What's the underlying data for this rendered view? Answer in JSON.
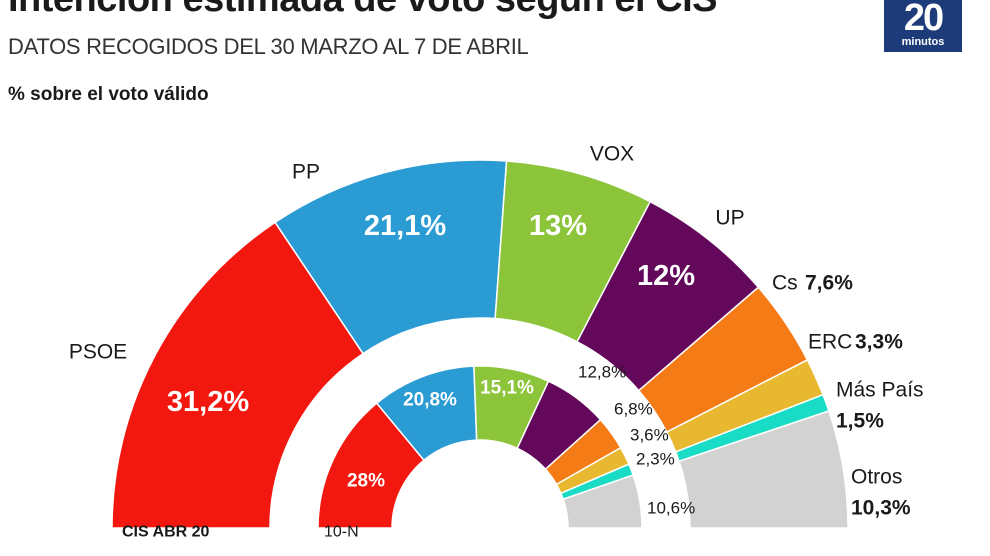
{
  "title": "Intención estimada de voto según el CIS",
  "subtitle": "DATOS RECOGIDOS DEL 30 MARZO AL 7 DE ABRIL",
  "metric_label": "% sobre el voto válido",
  "logo": {
    "number": "20",
    "word": "minutos"
  },
  "chart_data": [
    {
      "type": "pie",
      "style": "semicircle-donut",
      "ring_label": "CIS ABR 20",
      "categories": [
        "PSOE",
        "PP",
        "VOX",
        "UP",
        "Cs",
        "ERC",
        "Más País",
        "Otros"
      ],
      "values": [
        31.2,
        21.1,
        13,
        12,
        7.6,
        3.3,
        1.5,
        10.3
      ],
      "value_labels": [
        "31,2%",
        "21,1%",
        "13%",
        "12%",
        "7,6%",
        "3,3%",
        "1,5%",
        "10,3%"
      ],
      "colors": [
        "#f2170f",
        "#2b9bd3",
        "#8cc43a",
        "#64085c",
        "#f47b16",
        "#e8b830",
        "#19dcc6",
        "#d2d2d2"
      ]
    },
    {
      "type": "pie",
      "style": "semicircle-donut",
      "ring_label": "10-N",
      "categories": [
        "PSOE",
        "PP",
        "VOX",
        "UP",
        "Cs",
        "ERC",
        "Más País",
        "Otros"
      ],
      "values": [
        28,
        20.8,
        15.1,
        12.8,
        6.8,
        3.6,
        2.3,
        10.6
      ],
      "value_labels": [
        "28%",
        "20,8%",
        "15,1%",
        "12,8%",
        "6,8%",
        "3,6%",
        "2,3%",
        "10,6%"
      ],
      "colors": [
        "#f2170f",
        "#2b9bd3",
        "#8cc43a",
        "#64085c",
        "#f47b16",
        "#e8b830",
        "#19dcc6",
        "#d2d2d2"
      ]
    }
  ]
}
